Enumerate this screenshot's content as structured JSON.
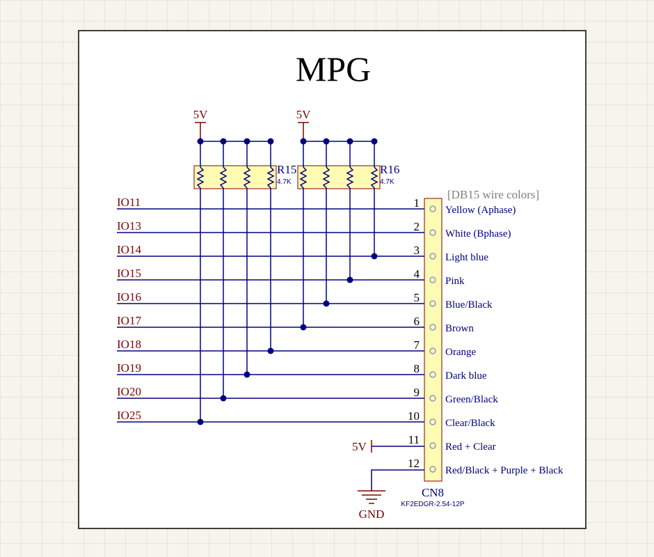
{
  "title": "MPG",
  "colors": {
    "background": "#f6f4ec",
    "grid": "#d9d6cc",
    "wire": "#000080",
    "net_label": "#800000",
    "part_fill": "#fffbb3",
    "part_stroke": "#800000",
    "junction": "#000080",
    "pin": "#8899cc",
    "note": "#808080"
  },
  "power": {
    "v5_label": "5V",
    "gnd_label": "GND"
  },
  "resistors": [
    {
      "designator": "R15",
      "value": "4.7K"
    },
    {
      "designator": "R16",
      "value": "4.7K"
    }
  ],
  "connector": {
    "designator": "CN8",
    "part_number": "KF2EDGR-2.54-12P",
    "note": "[DB15 wire colors]",
    "pins": [
      {
        "number": "1",
        "net": "IO11",
        "wire": "Yellow  (Aphase)"
      },
      {
        "number": "2",
        "net": "IO13",
        "wire": "White (Bphase)"
      },
      {
        "number": "3",
        "net": "IO14",
        "wire": "Light blue"
      },
      {
        "number": "4",
        "net": "IO15",
        "wire": "Pink"
      },
      {
        "number": "5",
        "net": "IO16",
        "wire": "Blue/Black"
      },
      {
        "number": "6",
        "net": "IO17",
        "wire": "Brown"
      },
      {
        "number": "7",
        "net": "IO18",
        "wire": "Orange"
      },
      {
        "number": "8",
        "net": "IO19",
        "wire": "Dark blue"
      },
      {
        "number": "9",
        "net": "IO20",
        "wire": "Green/Black"
      },
      {
        "number": "10",
        "net": "IO25",
        "wire": "Clear/Black"
      },
      {
        "number": "11",
        "net": "5V",
        "wire": "Red + Clear"
      },
      {
        "number": "12",
        "net": "GND",
        "wire": "Red/Black + Purple + Black"
      }
    ]
  }
}
